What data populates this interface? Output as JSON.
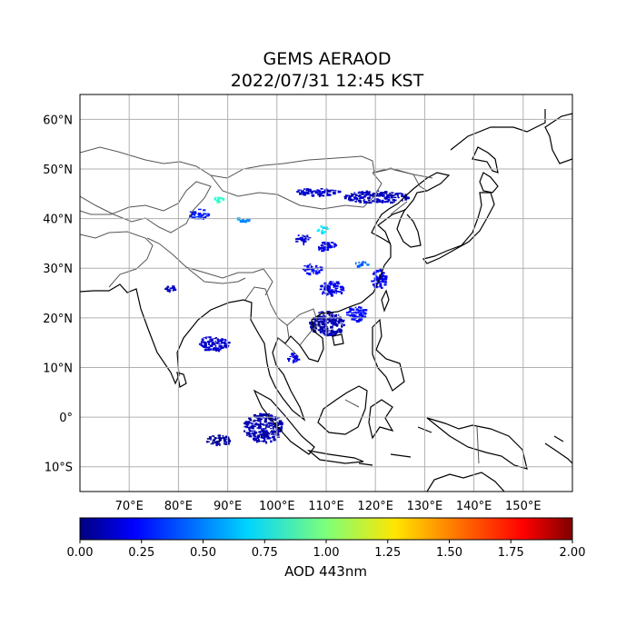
{
  "title": {
    "line1": "GEMS AERAOD",
    "line2": "2022/07/31 12:45 KST"
  },
  "map": {
    "lon_range": [
      60,
      160
    ],
    "lat_range": [
      -15,
      65
    ],
    "lon_ticks": [
      "70°E",
      "80°E",
      "90°E",
      "100°E",
      "110°E",
      "120°E",
      "130°E",
      "140°E",
      "150°E"
    ],
    "lat_ticks": [
      "60°N",
      "50°N",
      "40°N",
      "30°N",
      "20°N",
      "10°N",
      "0°",
      "10°S"
    ],
    "grid": true,
    "colormap": "jet"
  },
  "colorbar": {
    "label": "AOD 443nm",
    "range": [
      0,
      2
    ],
    "ticks": [
      "0.00",
      "0.25",
      "0.50",
      "0.75",
      "1.00",
      "1.25",
      "1.50",
      "1.75",
      "2.00"
    ]
  },
  "aod_regions": [
    {
      "lon": 120,
      "lat": 44.5,
      "lon_span": 13,
      "lat_span": 2.5,
      "aod": 0.12
    },
    {
      "lon": 108,
      "lat": 45.5,
      "lon_span": 9,
      "lat_span": 1.5,
      "aod": 0.15
    },
    {
      "lon": 105,
      "lat": 36,
      "lon_span": 3,
      "lat_span": 2,
      "aod": 0.14
    },
    {
      "lon": 110,
      "lat": 34.5,
      "lon_span": 4,
      "lat_span": 2,
      "aod": 0.2
    },
    {
      "lon": 107,
      "lat": 30,
      "lon_span": 4,
      "lat_span": 2,
      "aod": 0.25
    },
    {
      "lon": 111,
      "lat": 26,
      "lon_span": 5,
      "lat_span": 3,
      "aod": 0.2
    },
    {
      "lon": 120.5,
      "lat": 28,
      "lon_span": 3,
      "lat_span": 4,
      "aod": 0.22
    },
    {
      "lon": 110,
      "lat": 19,
      "lon_span": 7,
      "lat_span": 5,
      "aod": 0.1
    },
    {
      "lon": 116,
      "lat": 21,
      "lon_span": 4,
      "lat_span": 3,
      "aod": 0.25
    },
    {
      "lon": 78,
      "lat": 26,
      "lon_span": 2,
      "lat_span": 1.5,
      "aod": 0.12
    },
    {
      "lon": 87,
      "lat": 15,
      "lon_span": 6,
      "lat_span": 3,
      "aod": 0.15
    },
    {
      "lon": 97,
      "lat": -2,
      "lon_span": 8,
      "lat_span": 6,
      "aod": 0.1
    },
    {
      "lon": 88,
      "lat": -4.5,
      "lon_span": 5,
      "lat_span": 2,
      "aod": 0.05
    },
    {
      "lon": 84,
      "lat": 41,
      "lon_span": 4,
      "lat_span": 2,
      "aod": 0.3
    },
    {
      "lon": 93,
      "lat": 40,
      "lon_span": 3,
      "lat_span": 1,
      "aod": 0.55
    },
    {
      "lon": 109,
      "lat": 38,
      "lon_span": 2,
      "lat_span": 1.5,
      "aod": 0.7
    },
    {
      "lon": 88,
      "lat": 44,
      "lon_span": 2,
      "lat_span": 1,
      "aod": 0.85
    },
    {
      "lon": 117,
      "lat": 31,
      "lon_span": 3,
      "lat_span": 1,
      "aod": 0.45
    },
    {
      "lon": 103,
      "lat": 12,
      "lon_span": 2,
      "lat_span": 2,
      "aod": 0.2
    }
  ]
}
